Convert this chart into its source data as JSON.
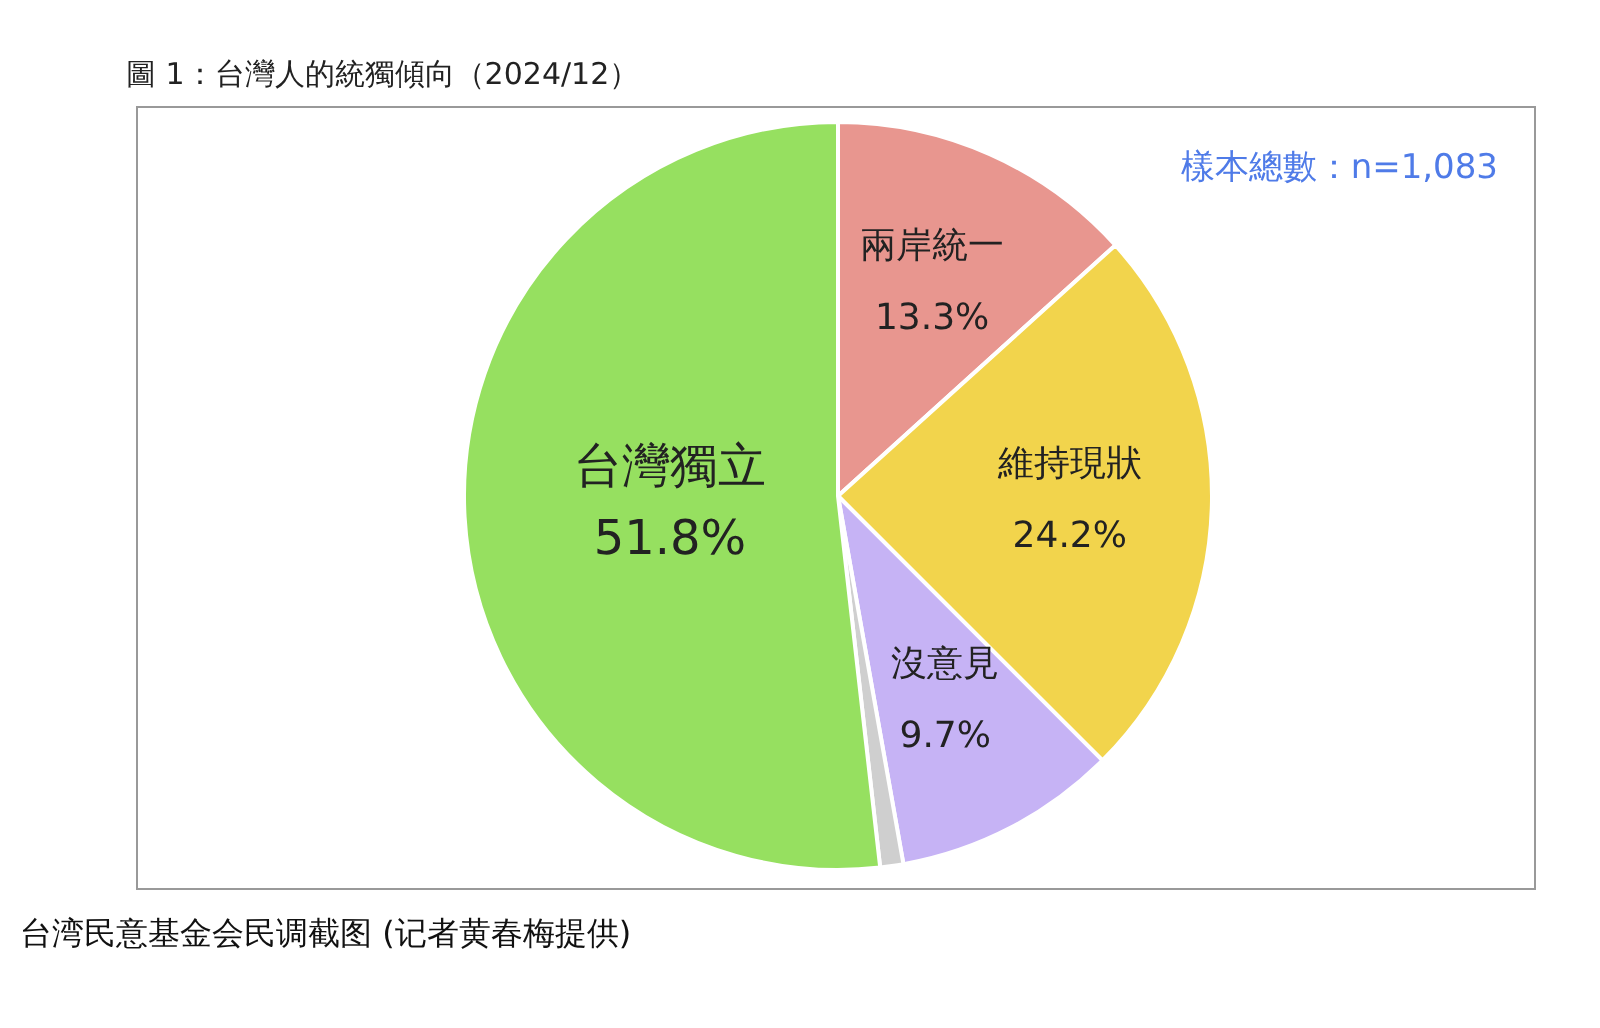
{
  "chart_data": {
    "type": "pie",
    "title": "圖 1：台灣人的統獨傾向（2024/12）",
    "categories": [
      "兩岸統一",
      "維持現狀",
      "沒意見",
      null,
      "台灣獨立"
    ],
    "values": [
      13.3,
      24.2,
      9.7,
      1.0,
      51.8
    ],
    "colors": [
      "#e8968f",
      "#f2d44c",
      "#c6b3f5",
      "#cfcfcf",
      "#96e060"
    ],
    "value_labels": [
      "13.3%",
      "24.2%",
      "9.7%",
      null,
      "51.8%"
    ],
    "legend": false,
    "annotations": [
      "樣本總數：n=1,083",
      "台湾民意基金会民调截图 (记者黄春梅提供)"
    ]
  }
}
